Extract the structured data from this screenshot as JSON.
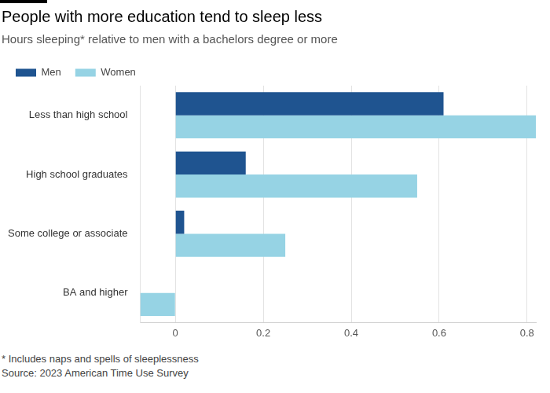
{
  "chart_data": {
    "type": "bar",
    "title": "People with more education tend to sleep less",
    "subtitle": "Hours sleeping* relative to men with a bachelors degree or more",
    "footnote": "* Includes naps and spells of sleeplessness",
    "source": "Source: 2023 American Time Use Survey",
    "categories": [
      "Less than high school",
      "High school graduates",
      "Some college or associate",
      "BA and higher"
    ],
    "series": [
      {
        "name": "Men",
        "color": "#1f5490",
        "values": [
          0.61,
          0.16,
          0.02,
          0
        ]
      },
      {
        "name": "Women",
        "color": "#96d3e4",
        "values": [
          0.82,
          0.55,
          0.25,
          -0.08
        ]
      }
    ],
    "orientation": "horizontal",
    "xlim": [
      -0.08,
      0.82
    ],
    "xticks": [
      0,
      0.2,
      0.4,
      0.6,
      0.8
    ],
    "grid": true,
    "legend": "top-left"
  }
}
